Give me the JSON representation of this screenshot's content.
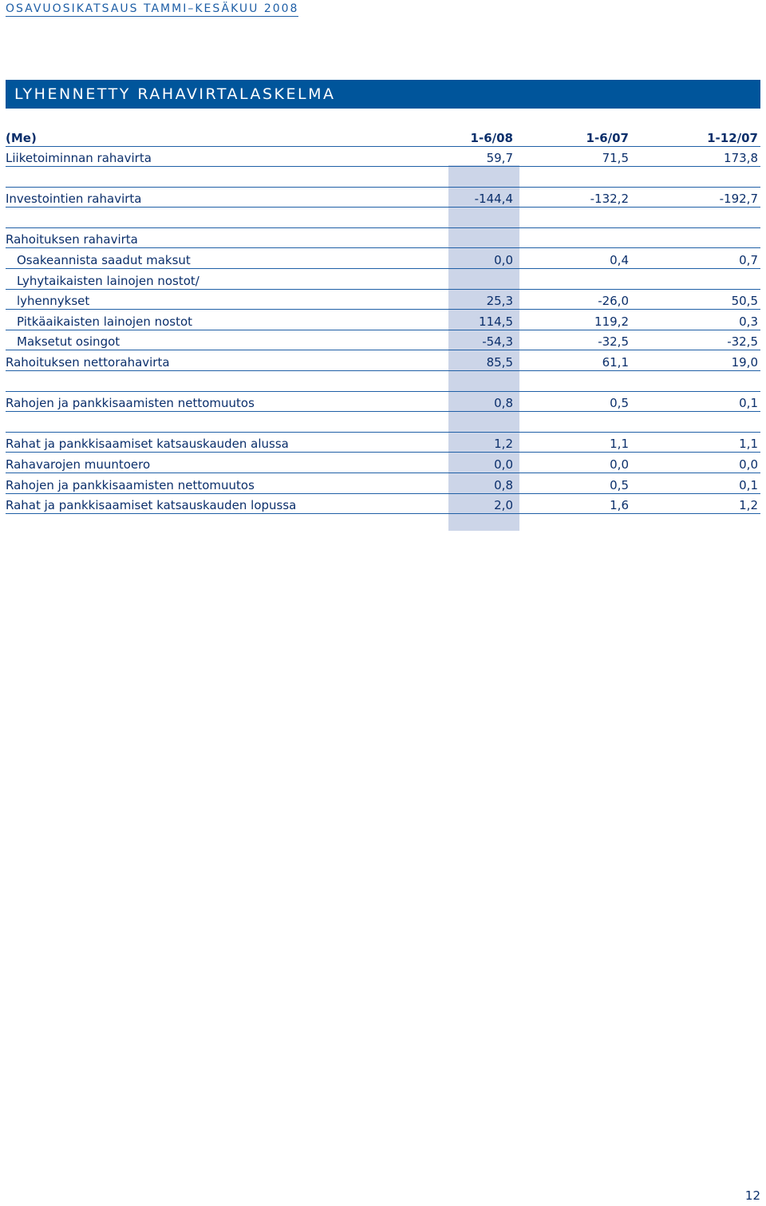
{
  "running_header": "OSAVUOSIKATSAUS TAMMI–KESÄKUU 2008",
  "section_title": "LYHENNETTY RAHAVIRTALASKELMA",
  "table": {
    "header": {
      "label": "(Me)",
      "c1": "1-6/08",
      "c2": "1-6/07",
      "c3": "1-12/07"
    },
    "rows": [
      {
        "label": "Liiketoiminnan rahavirta",
        "c1": "59,7",
        "c2": "71,5",
        "c3": "173,8",
        "indent": 0
      },
      {
        "label": "",
        "c1": "",
        "c2": "",
        "c3": "",
        "indent": 0
      },
      {
        "label": "Investointien rahavirta",
        "c1": "-144,4",
        "c2": "-132,2",
        "c3": "-192,7",
        "indent": 0
      },
      {
        "label": "",
        "c1": "",
        "c2": "",
        "c3": "",
        "indent": 0
      },
      {
        "label": "Rahoituksen rahavirta",
        "c1": "",
        "c2": "",
        "c3": "",
        "indent": 0
      },
      {
        "label": "Osakeannista saadut maksut",
        "c1": "0,0",
        "c2": "0,4",
        "c3": "0,7",
        "indent": 1
      },
      {
        "label": "Lyhytaikaisten lainojen nostot/",
        "c1": "",
        "c2": "",
        "c3": "",
        "indent": 1
      },
      {
        "label": "lyhennykset",
        "c1": "25,3",
        "c2": "-26,0",
        "c3": "50,5",
        "indent": 1
      },
      {
        "label": "Pitkäaikaisten lainojen nostot",
        "c1": "114,5",
        "c2": "119,2",
        "c3": "0,3",
        "indent": 1
      },
      {
        "label": "Maksetut osingot",
        "c1": "-54,3",
        "c2": "-32,5",
        "c3": "-32,5",
        "indent": 1
      },
      {
        "label": "Rahoituksen nettorahavirta",
        "c1": "85,5",
        "c2": "61,1",
        "c3": "19,0",
        "indent": 0
      },
      {
        "label": "",
        "c1": "",
        "c2": "",
        "c3": "",
        "indent": 0
      },
      {
        "label": "Rahojen ja pankkisaamisten nettomuutos",
        "c1": "0,8",
        "c2": "0,5",
        "c3": "0,1",
        "indent": 0
      },
      {
        "label": "",
        "c1": "",
        "c2": "",
        "c3": "",
        "indent": 0
      },
      {
        "label": "Rahat ja pankkisaamiset katsauskauden alussa",
        "c1": "1,2",
        "c2": "1,1",
        "c3": "1,1",
        "indent": 0
      },
      {
        "label": "Rahavarojen muuntoero",
        "c1": "0,0",
        "c2": "0,0",
        "c3": "0,0",
        "indent": 0
      },
      {
        "label": "Rahojen ja pankkisaamisten nettomuutos",
        "c1": "0,8",
        "c2": "0,5",
        "c3": "0,1",
        "indent": 0
      },
      {
        "label": "Rahat ja pankkisaamiset katsauskauden lopussa",
        "c1": "2,0",
        "c2": "1,6",
        "c3": "1,2",
        "indent": 0
      }
    ]
  },
  "page_number": "12"
}
